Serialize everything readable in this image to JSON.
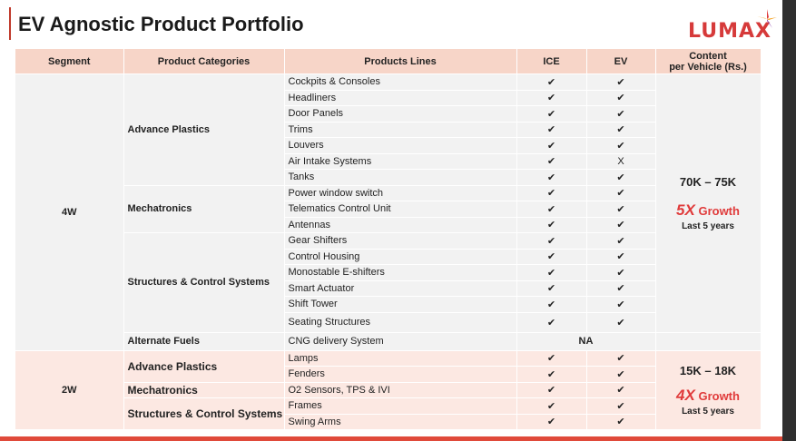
{
  "title": "EV Agnostic Product Portfolio",
  "logo": "LUMAX",
  "colors": {
    "accent": "#e03b3b",
    "header_bg": "#f7d5c8",
    "row_4w": "#f2f2f2",
    "row_2w": "#fce8e2"
  },
  "headers": {
    "segment": "Segment",
    "categories": "Product Categories",
    "lines": "Products Lines",
    "ice": "ICE",
    "ev": "EV",
    "content_line1": "Content",
    "content_line2": "per Vehicle (Rs.)"
  },
  "four_w": {
    "segment": "4W",
    "cat_advance_plastics": "Advance Plastics",
    "cat_mechatronics": "Mechatronics",
    "cat_structures": "Structures & Control Systems",
    "cat_alt_fuels": "Alternate Fuels",
    "rows": [
      {
        "line": "Cockpits & Consoles",
        "ice": "✔",
        "ev": "✔"
      },
      {
        "line": "Headliners",
        "ice": "✔",
        "ev": "✔"
      },
      {
        "line": "Door Panels",
        "ice": "✔",
        "ev": "✔"
      },
      {
        "line": "Trims",
        "ice": "✔",
        "ev": "✔"
      },
      {
        "line": "Louvers",
        "ice": "✔",
        "ev": "✔"
      },
      {
        "line": "Air Intake Systems",
        "ice": "✔",
        "ev": "X"
      },
      {
        "line": "Tanks",
        "ice": "✔",
        "ev": "✔"
      },
      {
        "line": "Power window switch",
        "ice": "✔",
        "ev": "✔"
      },
      {
        "line": "Telematics Control Unit",
        "ice": "✔",
        "ev": "✔"
      },
      {
        "line": "Antennas",
        "ice": "✔",
        "ev": "✔"
      },
      {
        "line": "Gear Shifters",
        "ice": "✔",
        "ev": "✔"
      },
      {
        "line": "Control Housing",
        "ice": "✔",
        "ev": "✔"
      },
      {
        "line": "Monostable E-shifters",
        "ice": "✔",
        "ev": "✔"
      },
      {
        "line": "Smart Actuator",
        "ice": "✔",
        "ev": "✔"
      },
      {
        "line": "Shift Tower",
        "ice": "✔",
        "ev": "✔"
      },
      {
        "line": "Seating Structures",
        "ice": "✔",
        "ev": "✔"
      }
    ],
    "alt_line": "CNG delivery System",
    "alt_value": "NA",
    "content_range": "70K – 75K",
    "growth_big": "5X",
    "growth_word": "Growth",
    "growth_sub": "Last 5 years"
  },
  "two_w": {
    "segment": "2W",
    "cat_advance_plastics": "Advance Plastics",
    "cat_mechatronics": "Mechatronics",
    "cat_structures": "Structures & Control Systems",
    "rows": [
      {
        "line": "Lamps",
        "ice": "✔",
        "ev": "✔"
      },
      {
        "line": "Fenders",
        "ice": "✔",
        "ev": "✔"
      },
      {
        "line": "O2 Sensors, TPS & IVI",
        "ice": "✔",
        "ev": "✔"
      },
      {
        "line": "Frames",
        "ice": "✔",
        "ev": "✔"
      },
      {
        "line": "Swing Arms",
        "ice": "✔",
        "ev": "✔"
      }
    ],
    "content_range": "15K – 18K",
    "growth_big": "4X",
    "growth_word": "Growth",
    "growth_sub": "Last 5 years"
  }
}
